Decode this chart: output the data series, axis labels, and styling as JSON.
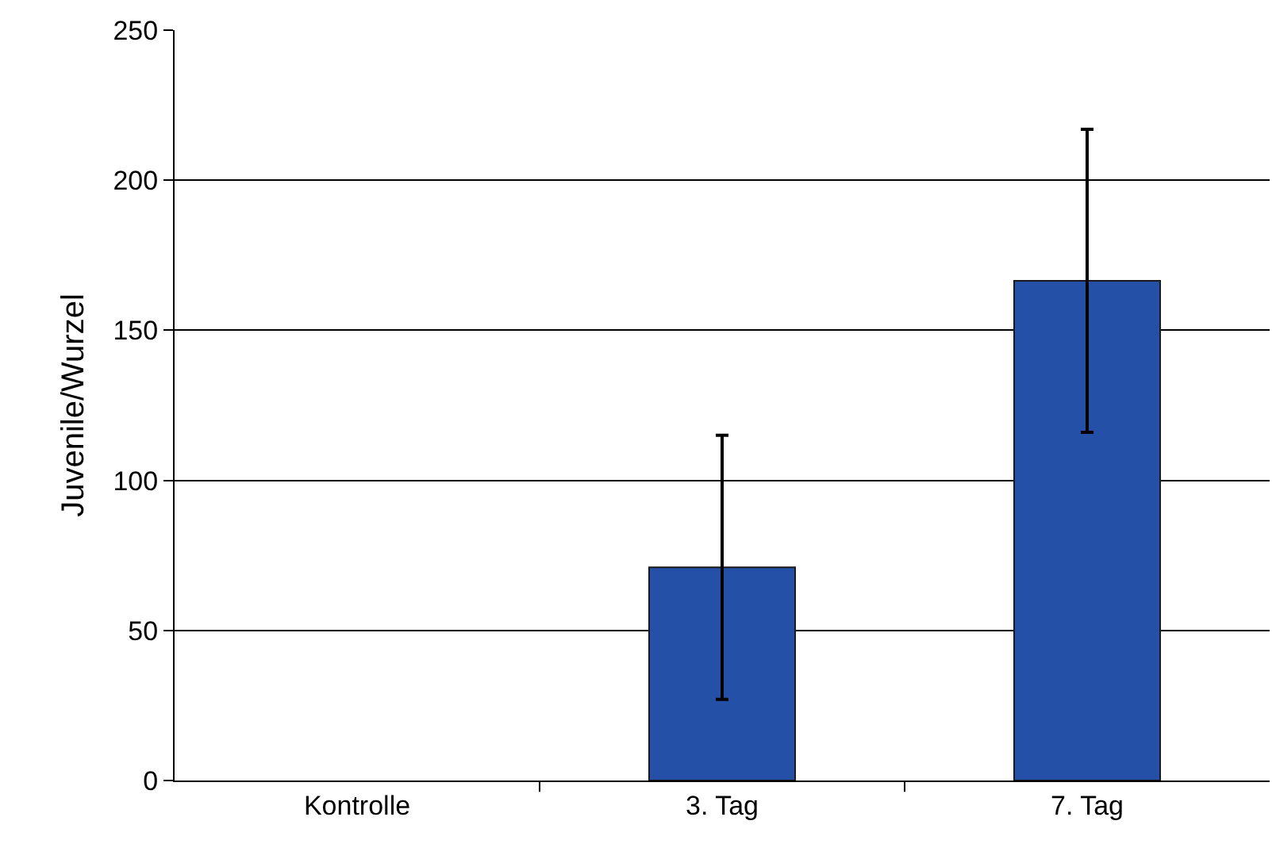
{
  "chart_data": {
    "type": "bar",
    "ylabel": "Juvenile/Wurzel",
    "categories": [
      "Kontrolle",
      "3. Tag",
      "7. Tag"
    ],
    "values": [
      0,
      71,
      166.5
    ],
    "errors": [
      null,
      44,
      50.5
    ],
    "color": "#2550a8",
    "ylim": [
      0,
      250
    ],
    "yticks": [
      0,
      50,
      100,
      150,
      200,
      250
    ],
    "grid": "y"
  }
}
